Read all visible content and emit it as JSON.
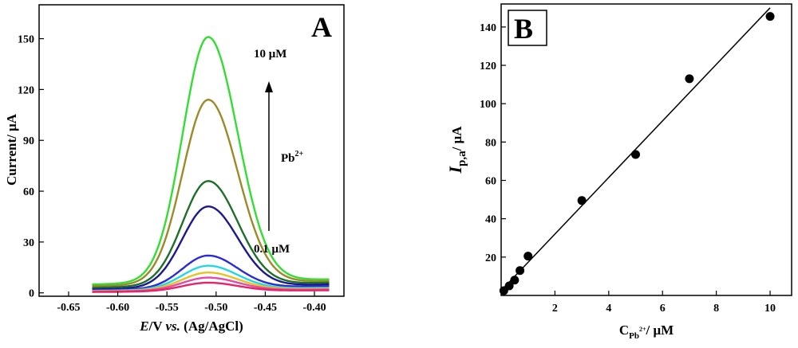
{
  "chart_data": [
    {
      "panel": "A",
      "type": "line",
      "xlabel_italic": "E",
      "xlabel_mid": "/V ",
      "xlabel_vs": "vs.",
      "xlabel_rest": " (Ag/AgCl)",
      "ylabel": "Current/ μA",
      "xlim": [
        -0.68,
        -0.37
      ],
      "ylim": [
        -2,
        170
      ],
      "xticks": [
        -0.65,
        -0.6,
        -0.55,
        -0.5,
        -0.45,
        -0.4
      ],
      "xtick_labels": [
        "-0.65",
        "-0.60",
        "-0.55",
        "-0.50",
        "-0.45",
        "-0.40"
      ],
      "yticks": [
        0,
        30,
        60,
        90,
        120,
        150
      ],
      "ytick_labels": [
        "0",
        "30",
        "60",
        "90",
        "120",
        "150"
      ],
      "annotations": {
        "top": "10 μM",
        "bottom": "0.1 μM",
        "ion": "Pb",
        "ion_charge": "2+"
      },
      "curve_x": {
        "start": -0.626,
        "end": -0.385,
        "peak": -0.508
      },
      "series": [
        {
          "peak": 151,
          "base_left": 5,
          "base_right": 8,
          "color": "#33dd33"
        },
        {
          "peak": 114,
          "base_left": 4,
          "base_right": 7,
          "color": "#9a8a2a"
        },
        {
          "peak": 66,
          "base_left": 3,
          "base_right": 6,
          "color": "#1f6e2a"
        },
        {
          "peak": 51,
          "base_left": 2,
          "base_right": 5,
          "color": "#1a1a8c"
        },
        {
          "peak": 22,
          "base_left": 1.5,
          "base_right": 4,
          "color": "#2b2bd6"
        },
        {
          "peak": 16,
          "base_left": 1.2,
          "base_right": 3,
          "color": "#22d6e6"
        },
        {
          "peak": 12,
          "base_left": 1,
          "base_right": 2.5,
          "color": "#e6c322"
        },
        {
          "peak": 9,
          "base_left": 0.8,
          "base_right": 2,
          "color": "#e64aa6"
        },
        {
          "peak": 6,
          "base_left": 0.5,
          "base_right": 1.5,
          "color": "#e6226a"
        }
      ]
    },
    {
      "panel": "B",
      "type": "scatter",
      "xlabel": "C",
      "xlabel_sub": "Pb",
      "xlabel_sup": "2+",
      "xlabel_unit": "/ μM",
      "ylabel_i": "I",
      "ylabel_sub": "p,a",
      "ylabel_unit": "/ μA",
      "xlim": [
        0,
        10.8
      ],
      "ylim": [
        0,
        152
      ],
      "xticks": [
        2,
        4,
        6,
        8,
        10
      ],
      "xtick_labels": [
        "2",
        "4",
        "6",
        "8",
        "10"
      ],
      "yticks": [
        20,
        40,
        60,
        80,
        100,
        120,
        140
      ],
      "ytick_labels": [
        "20",
        "40",
        "60",
        "80",
        "100",
        "120",
        "140"
      ],
      "x": [
        0.1,
        0.3,
        0.5,
        0.7,
        1.0,
        3.0,
        5.0,
        7.0,
        10.0
      ],
      "y": [
        2.5,
        5,
        8,
        13,
        20.5,
        49.5,
        73.5,
        113,
        145.5
      ],
      "fit": {
        "x": [
          0.1,
          10.0
        ],
        "y": [
          4,
          150
        ]
      }
    }
  ]
}
